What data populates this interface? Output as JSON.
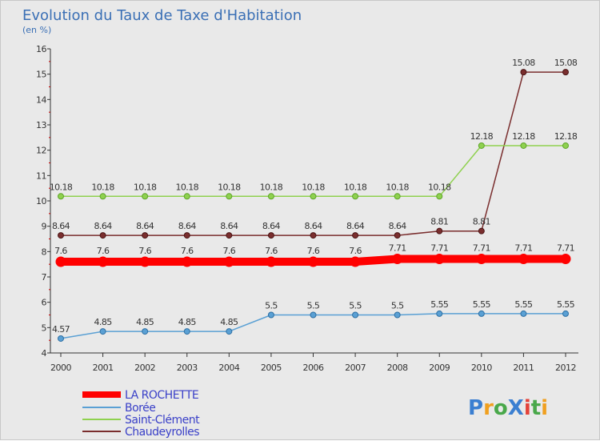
{
  "chart_data": {
    "type": "line",
    "title": "Evolution du Taux de Taxe d'Habitation",
    "subtitle": "(en %)",
    "xlabel": "",
    "ylabel": "",
    "x": [
      "2000",
      "2001",
      "2002",
      "2003",
      "2004",
      "2005",
      "2006",
      "2007",
      "2008",
      "2009",
      "2010",
      "2011",
      "2012"
    ],
    "ylim": [
      4,
      16
    ],
    "yticks": [
      4,
      5,
      6,
      7,
      8,
      9,
      10,
      11,
      12,
      13,
      14,
      15,
      16
    ],
    "grid": false,
    "legend_position": "bottom-left",
    "series": [
      {
        "name": "LA ROCHETTE",
        "color": "#ff0000",
        "values": [
          7.6,
          7.6,
          7.6,
          7.6,
          7.6,
          7.6,
          7.6,
          7.6,
          7.71,
          7.71,
          7.71,
          7.71,
          7.71
        ],
        "labels": [
          "7.6",
          "7.6",
          "7.6",
          "7.6",
          "7.6",
          "7.6",
          "7.6",
          "7.6",
          "7.71",
          "7.71",
          "7.71",
          "7.71",
          "7.71"
        ]
      },
      {
        "name": "Borée",
        "color": "#5aa0d4",
        "values": [
          4.57,
          4.85,
          4.85,
          4.85,
          4.85,
          5.5,
          5.5,
          5.5,
          5.5,
          5.55,
          5.55,
          5.55,
          5.55
        ],
        "labels": [
          "4.57",
          "4.85",
          "4.85",
          "4.85",
          "4.85",
          "5.5",
          "5.5",
          "5.5",
          "5.5",
          "5.55",
          "5.55",
          "5.55",
          "5.55"
        ]
      },
      {
        "name": "Saint-Clément",
        "color": "#8fd14f",
        "values": [
          10.18,
          10.18,
          10.18,
          10.18,
          10.18,
          10.18,
          10.18,
          10.18,
          10.18,
          10.18,
          12.18,
          12.18,
          12.18
        ],
        "labels": [
          "10.18",
          "10.18",
          "10.18",
          "10.18",
          "10.18",
          "10.18",
          "10.18",
          "10.18",
          "10.18",
          "10.18",
          "12.18",
          "12.18",
          "12.18"
        ]
      },
      {
        "name": "Chaudeyrolles",
        "color": "#7a2e2e",
        "values": [
          8.64,
          8.64,
          8.64,
          8.64,
          8.64,
          8.64,
          8.64,
          8.64,
          8.64,
          8.81,
          8.81,
          15.08,
          15.08
        ],
        "labels": [
          "8.64",
          "8.64",
          "8.64",
          "8.64",
          "8.64",
          "8.64",
          "8.64",
          "8.64",
          "8.64",
          "8.81",
          "8.81",
          "15.08",
          "15.08"
        ]
      }
    ],
    "brand": "ProXiti"
  }
}
